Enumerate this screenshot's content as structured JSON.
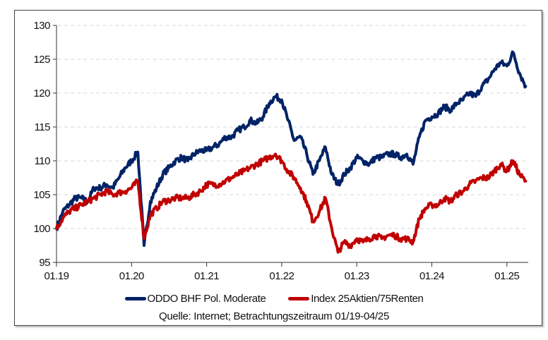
{
  "chart_data": {
    "type": "line",
    "title": "",
    "xlabel": "",
    "ylabel": "",
    "ylim": [
      95,
      130
    ],
    "yticks": [
      "95",
      "100",
      "105",
      "110",
      "115",
      "120",
      "125",
      "130"
    ],
    "xticks": [
      "01.19",
      "01.20",
      "01.21",
      "01.22",
      "01.23",
      "01.24",
      "01.25"
    ],
    "xrange": [
      "2019-01",
      "2025-04"
    ],
    "grid": "horizontal dashed",
    "legend_position": "bottom",
    "source": "Quelle: Internet; Betrachtungszeitraum 01/19-04/25",
    "x": [
      "2019-01",
      "2019-02",
      "2019-03",
      "2019-04",
      "2019-05",
      "2019-06",
      "2019-07",
      "2019-08",
      "2019-09",
      "2019-10",
      "2019-11",
      "2019-12",
      "2020-01",
      "2020-02",
      "2020-03",
      "2020-04",
      "2020-05",
      "2020-06",
      "2020-07",
      "2020-08",
      "2020-09",
      "2020-10",
      "2020-11",
      "2020-12",
      "2021-01",
      "2021-02",
      "2021-03",
      "2021-04",
      "2021-05",
      "2021-06",
      "2021-07",
      "2021-08",
      "2021-09",
      "2021-10",
      "2021-11",
      "2021-12",
      "2022-01",
      "2022-02",
      "2022-03",
      "2022-04",
      "2022-05",
      "2022-06",
      "2022-07",
      "2022-08",
      "2022-09",
      "2022-10",
      "2022-11",
      "2022-12",
      "2023-01",
      "2023-02",
      "2023-03",
      "2023-04",
      "2023-05",
      "2023-06",
      "2023-07",
      "2023-08",
      "2023-09",
      "2023-10",
      "2023-11",
      "2023-12",
      "2024-01",
      "2024-02",
      "2024-03",
      "2024-04",
      "2024-05",
      "2024-06",
      "2024-07",
      "2024-08",
      "2024-09",
      "2024-10",
      "2024-11",
      "2024-12",
      "2025-01",
      "2025-02",
      "2025-03",
      "2025-04"
    ],
    "series": [
      {
        "name": "ODDO BHF Pol. Moderate",
        "color": "#002366",
        "values": [
          100,
          102.5,
          103.5,
          104.5,
          104.5,
          104,
          106,
          106,
          106.5,
          106,
          107.5,
          109,
          110,
          111.3,
          97.5,
          104,
          106,
          108,
          109,
          110,
          110.5,
          110,
          111,
          111.5,
          111.5,
          112,
          112.5,
          113.5,
          113.5,
          114.5,
          115,
          116,
          115.5,
          116.5,
          118.5,
          119.5,
          119,
          116,
          113,
          113.5,
          111,
          108,
          110,
          112,
          108,
          106.5,
          108,
          109,
          110.5,
          110,
          109.5,
          110.5,
          110.5,
          111,
          111,
          110.5,
          111,
          109.5,
          113.5,
          116,
          116.5,
          117,
          118,
          117.5,
          118.5,
          119,
          120,
          119.5,
          121,
          122,
          123.5,
          124.5,
          124,
          126,
          123,
          121
        ]
      },
      {
        "name": "Index 25Aktien/75Renten",
        "color": "#C00000",
        "values": [
          100,
          101.5,
          102.5,
          103,
          103.5,
          104,
          104.5,
          105,
          105.5,
          105,
          105.3,
          105.5,
          106,
          107,
          98.5,
          102,
          103,
          104,
          104.2,
          104.5,
          104.5,
          104.5,
          105,
          105.5,
          106.5,
          106.5,
          106.5,
          107,
          107.5,
          108,
          108.5,
          109,
          109.5,
          110,
          110.5,
          111,
          110,
          108.5,
          107.5,
          106,
          104,
          101,
          102.5,
          104.5,
          100,
          96.5,
          98,
          97.5,
          98.5,
          98,
          98.5,
          99,
          98.5,
          99,
          99,
          98.5,
          98.5,
          98,
          101.5,
          103,
          103.5,
          103.5,
          104.5,
          104,
          105,
          105.5,
          106.5,
          107,
          107.5,
          107.5,
          108.5,
          109.5,
          108.5,
          110,
          108,
          107
        ]
      }
    ]
  }
}
